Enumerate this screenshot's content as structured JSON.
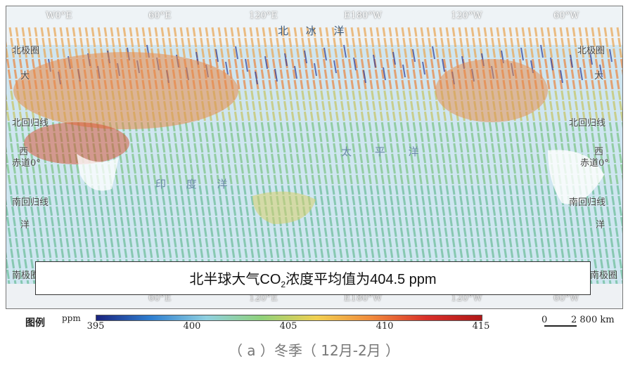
{
  "map": {
    "top_ticks": [
      "W0°E",
      "60°E",
      "120°E",
      "E180°W",
      "120°W",
      "60°W"
    ],
    "bottom_ticks": [
      "60°E",
      "120°E",
      "E180°W",
      "120°W",
      "60°W"
    ],
    "lat_labels_left": [
      "北极圈",
      "北回归线",
      "赤道0°",
      "南回归线",
      "南极圈"
    ],
    "lat_labels_right": [
      "北极圈",
      "北回归线",
      "赤道0°",
      "南回归线",
      "南极圈"
    ],
    "ocean_labels": [
      "北 冰 洋",
      "太 平 洋",
      "印 度 洋"
    ],
    "edge_labels_left": [
      "大",
      "西",
      "洋"
    ],
    "edge_labels_right": [
      "大",
      "西",
      "洋"
    ]
  },
  "summary": {
    "prefix": "北半球大气CO",
    "subscript": "2",
    "suffix": "浓度平均值为404.5 ppm"
  },
  "legend": {
    "title": "图例",
    "unit": "ppm",
    "ticks": [
      "395",
      "400",
      "405",
      "410",
      "415"
    ],
    "tick_values": [
      395,
      400,
      405,
      410,
      415
    ],
    "colors": [
      "#1a237e",
      "#2f7fd0",
      "#8fd0e0",
      "#8fd17a",
      "#f1d050",
      "#f08a3c",
      "#d8302a",
      "#b01818"
    ]
  },
  "scale_bar": {
    "zero": "0",
    "distance": "2 800 km"
  },
  "caption": "（ a ）冬季（ 12月-2月 ）"
}
